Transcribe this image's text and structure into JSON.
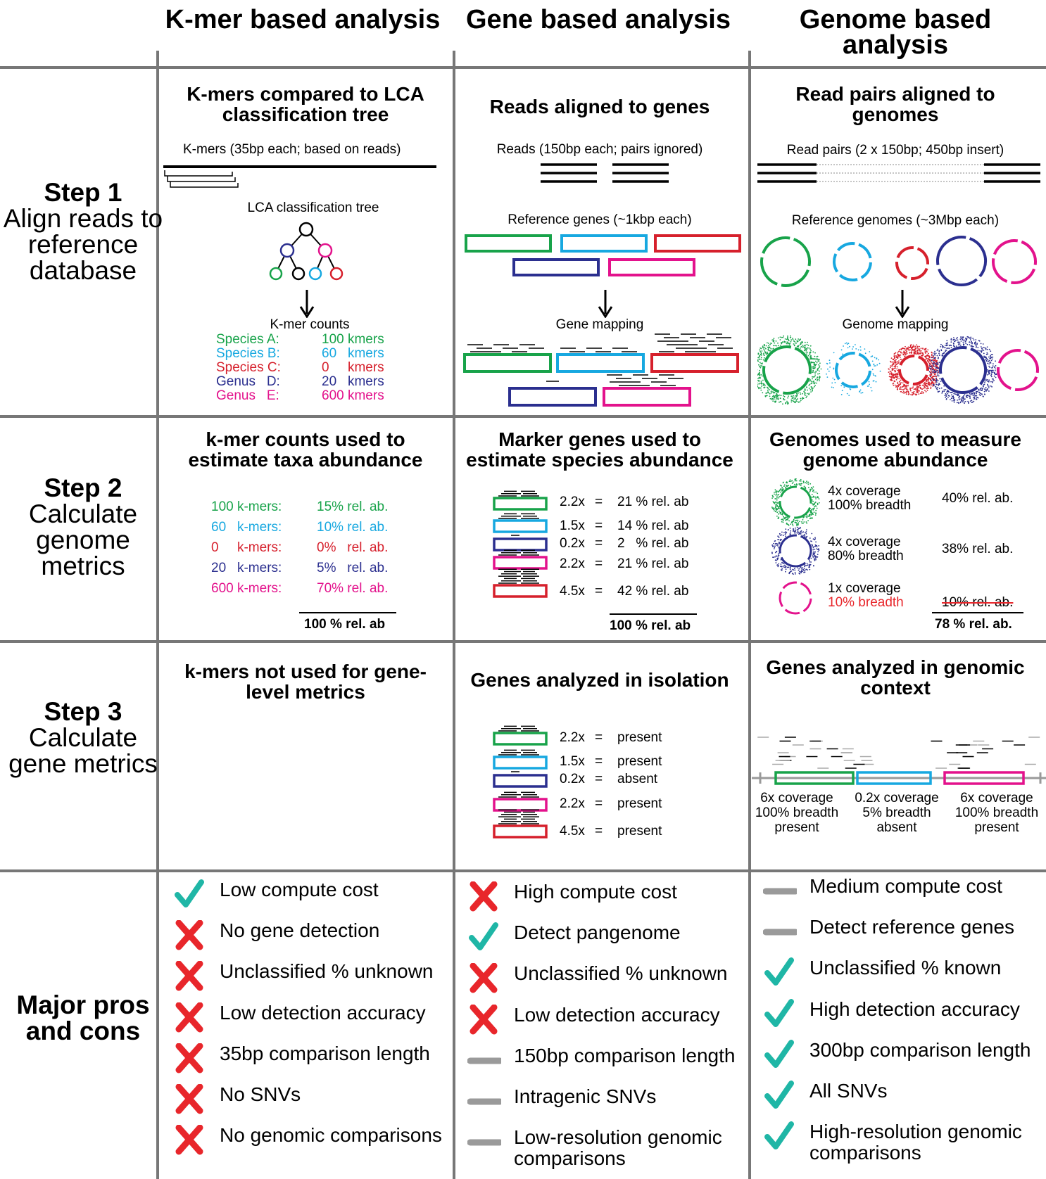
{
  "columns": [
    {
      "id": "kmer",
      "title": "K-mer based analysis"
    },
    {
      "id": "gene",
      "title": "Gene based analysis"
    },
    {
      "id": "genome",
      "title": "Genome based analysis"
    }
  ],
  "rows": {
    "step1": {
      "label": "Step 1",
      "desc": "Align reads to reference database"
    },
    "step2": {
      "label": "Step 2",
      "desc": "Calculate genome metrics"
    },
    "step3": {
      "label": "Step 3",
      "desc": "Calculate gene metrics"
    },
    "pros": {
      "label": "Major pros and cons"
    }
  },
  "step1": {
    "kmer": {
      "title": "K-mers compared to LCA classification tree",
      "kmers_label": "K-mers (35bp each; based on reads)",
      "tree_label": "LCA classification tree",
      "counts_label": "K-mer counts",
      "counts": [
        {
          "name": "Species A:",
          "value": "100 kmers",
          "color": "#18a34a"
        },
        {
          "name": "Species B:",
          "value": "60   kmers",
          "color": "#17a8e0"
        },
        {
          "name": "Species C:",
          "value": "0     kmers",
          "color": "#d6202c"
        },
        {
          "name": "Genus   D:",
          "value": "20   kmers",
          "color": "#2b2f8f"
        },
        {
          "name": "Genus   E:",
          "value": "600 kmers",
          "color": "#e3128c"
        }
      ]
    },
    "gene": {
      "title": "Reads aligned to genes",
      "reads_label": "Reads (150bp each; pairs ignored)",
      "ref_label": "Reference genes (~1kbp each)",
      "mapping_label": "Gene mapping"
    },
    "genome": {
      "title": "Read pairs aligned to genomes",
      "pairs_label": "Read pairs (2 x 150bp; 450bp insert)",
      "ref_label": "Reference genomes (~3Mbp each)",
      "mapping_label": "Genome mapping"
    }
  },
  "step2": {
    "kmer": {
      "title": "k-mer counts used to estimate taxa abundance",
      "rows": [
        {
          "count": "100 k-mers:",
          "ab": "15% rel. ab.",
          "color": "#18a34a"
        },
        {
          "count": "60   k-mers:",
          "ab": "10% rel. ab.",
          "color": "#17a8e0"
        },
        {
          "count": "0     k-mers:",
          "ab": "0%   rel. ab.",
          "color": "#d6202c"
        },
        {
          "count": "20   k-mers:",
          "ab": "5%   rel. ab.",
          "color": "#2b2f8f"
        },
        {
          "count": "600 k-mers:",
          "ab": "70% rel. ab.",
          "color": "#e3128c"
        }
      ],
      "total": "100 % rel. ab"
    },
    "gene": {
      "title": "Marker genes used to estimate species abundance",
      "rows": [
        {
          "cov": "2.2x",
          "ab": "21 % rel. ab",
          "color": "#18a34a"
        },
        {
          "cov": "1.5x",
          "ab": "14 % rel. ab",
          "color": "#17a8e0"
        },
        {
          "cov": "0.2x",
          "ab": "2   % rel. ab",
          "color": "#2b2f8f"
        },
        {
          "cov": "2.2x",
          "ab": "21 % rel. ab",
          "color": "#e3128c"
        },
        {
          "cov": "4.5x",
          "ab": "42 % rel. ab",
          "color": "#d6202c"
        }
      ],
      "total": "100 % rel. ab"
    },
    "genome": {
      "title": "Genomes used to measure genome abundance",
      "rows": [
        {
          "cov": "4x coverage",
          "breadth": "100% breadth",
          "ab": "40% rel. ab.",
          "color": "#18a34a"
        },
        {
          "cov": "4x coverage",
          "breadth": "80% breadth",
          "ab": "38% rel. ab.",
          "color": "#2b2f8f"
        },
        {
          "cov": "1x coverage",
          "breadth": "10% breadth",
          "ab": "10% rel. ab.",
          "color": "#e3128c"
        }
      ],
      "total": "78 % rel. ab."
    }
  },
  "step3": {
    "kmer": {
      "title": "k-mers not used for gene-level metrics"
    },
    "gene": {
      "title": "Genes analyzed in isolation",
      "rows": [
        {
          "cov": "2.2x",
          "status": "present",
          "color": "#18a34a"
        },
        {
          "cov": "1.5x",
          "status": "present",
          "color": "#17a8e0"
        },
        {
          "cov": "0.2x",
          "status": "absent",
          "color": "#2b2f8f"
        },
        {
          "cov": "2.2x",
          "status": "present",
          "color": "#e3128c"
        },
        {
          "cov": "4.5x",
          "status": "present",
          "color": "#d6202c"
        }
      ]
    },
    "genome": {
      "title": "Genes analyzed in genomic context",
      "genes": [
        {
          "cov": "6x coverage",
          "breadth": "100% breadth",
          "status": "present",
          "color": "#18a34a"
        },
        {
          "cov": "0.2x coverage",
          "breadth": "5% breadth",
          "status": "absent",
          "color": "#17a8e0"
        },
        {
          "cov": "6x coverage",
          "breadth": "100% breadth",
          "status": "present",
          "color": "#e3128c"
        }
      ]
    }
  },
  "pros_cons": {
    "kmer": [
      {
        "icon": "check",
        "label": "Low compute cost"
      },
      {
        "icon": "cross",
        "label": "No gene detection"
      },
      {
        "icon": "cross",
        "label": "Unclassified % unknown"
      },
      {
        "icon": "cross",
        "label": "Low detection accuracy"
      },
      {
        "icon": "cross",
        "label": "35bp comparison length"
      },
      {
        "icon": "cross",
        "label": "No SNVs"
      },
      {
        "icon": "cross",
        "label": "No genomic comparisons"
      }
    ],
    "gene": [
      {
        "icon": "cross",
        "label": "High compute cost"
      },
      {
        "icon": "check",
        "label": "Detect pangenome"
      },
      {
        "icon": "cross",
        "label": "Unclassified % unknown"
      },
      {
        "icon": "cross",
        "label": "Low detection accuracy"
      },
      {
        "icon": "dash",
        "label": "150bp comparison length"
      },
      {
        "icon": "dash",
        "label": "Intragenic SNVs"
      },
      {
        "icon": "dash",
        "label": "Low-resolution genomic comparisons"
      }
    ],
    "genome": [
      {
        "icon": "dash",
        "label": "Medium compute cost"
      },
      {
        "icon": "dash",
        "label": "Detect reference genes"
      },
      {
        "icon": "check",
        "label": "Unclassified % known"
      },
      {
        "icon": "check",
        "label": "High detection accuracy"
      },
      {
        "icon": "check",
        "label": "300bp comparison length"
      },
      {
        "icon": "check",
        "label": "All SNVs"
      },
      {
        "icon": "check",
        "label": "High-resolution genomic comparisons"
      }
    ]
  },
  "colors": {
    "grid": "#777777",
    "check": "#1fb6a6",
    "cross": "#e8262b",
    "dash": "#9a9a9a",
    "breadth_warn": "#e8262b"
  }
}
